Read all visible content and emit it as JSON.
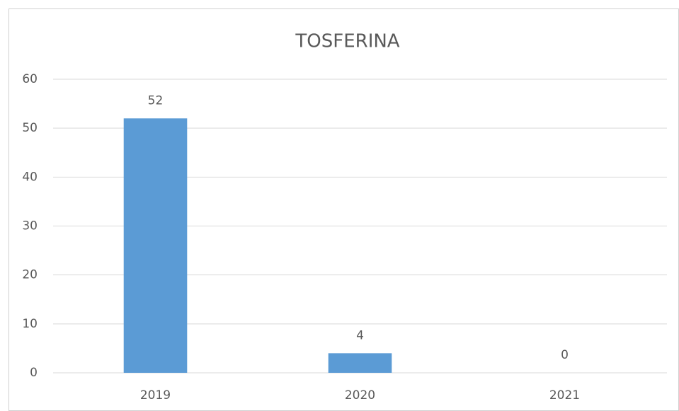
{
  "chart_data": {
    "type": "bar",
    "title": "TOSFERINA",
    "categories": [
      "2019",
      "2020",
      "2021"
    ],
    "values": [
      52,
      4,
      0
    ],
    "color": "#5b9bd5",
    "ylim": [
      0,
      60
    ],
    "yticks": [
      0,
      10,
      20,
      30,
      40,
      50,
      60
    ],
    "grid": true
  }
}
